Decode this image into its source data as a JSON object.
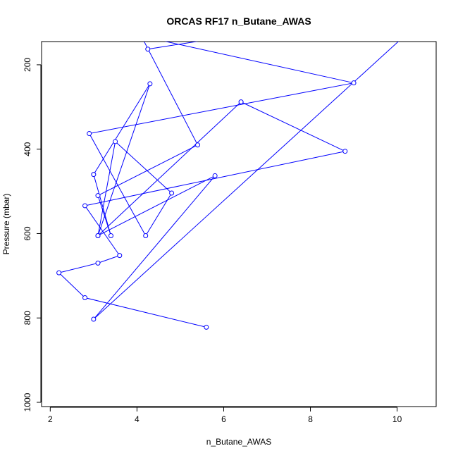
{
  "chart_data": {
    "type": "line",
    "title": "ORCAS RF17 n_Butane_AWAS",
    "xlabel": "n_Butane_AWAS",
    "ylabel": "Pressure (mbar)",
    "xlim": [
      1.8,
      10.9
    ],
    "ylim": [
      1010,
      145
    ],
    "y_reversed": true,
    "x_ticks": [
      2,
      4,
      6,
      8,
      10
    ],
    "y_ticks": [
      200,
      400,
      600,
      800,
      1000
    ],
    "grid": false,
    "series_color": "#0000ff",
    "marker": "open-circle",
    "x": [
      4.2,
      5.6
    ],
    "y": [
      150,
      136
    ],
    "points": [
      {
        "x": 5.6,
        "y": 822
      },
      {
        "x": 2.8,
        "y": 752
      },
      {
        "x": 2.2,
        "y": 693
      },
      {
        "x": 3.1,
        "y": 670
      },
      {
        "x": 3.6,
        "y": 652
      },
      {
        "x": 2.8,
        "y": 534
      },
      {
        "x": 8.8,
        "y": 405
      },
      {
        "x": 6.4,
        "y": 288
      },
      {
        "x": 3.1,
        "y": 605
      },
      {
        "x": 3.5,
        "y": 382
      },
      {
        "x": 4.8,
        "y": 504
      },
      {
        "x": 4.2,
        "y": 605
      },
      {
        "x": 2.9,
        "y": 363
      },
      {
        "x": 9.0,
        "y": 243
      },
      {
        "x": 4.1,
        "y": 132
      },
      {
        "x": 5.4,
        "y": 390
      },
      {
        "x": 3.1,
        "y": 510
      },
      {
        "x": 3.4,
        "y": 605
      },
      {
        "x": 3.0,
        "y": 460
      },
      {
        "x": 4.3,
        "y": 245
      },
      {
        "x": 3.1,
        "y": 605
      },
      {
        "x": 5.8,
        "y": 463
      },
      {
        "x": 3.0,
        "y": 803
      },
      {
        "x": 10.4,
        "y": 110
      }
    ],
    "offscreen_start": {
      "x": 4.25,
      "y": 163
    },
    "top_segment": [
      {
        "x": 4.25,
        "y": 163
      },
      {
        "x": 5.8,
        "y": 138
      }
    ]
  }
}
